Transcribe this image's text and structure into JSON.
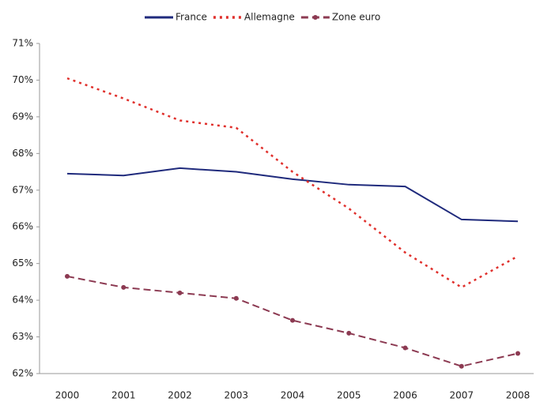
{
  "chart_data": {
    "type": "line",
    "categories": [
      "2000",
      "2001",
      "2002",
      "2003",
      "2004",
      "2005",
      "2006",
      "2007",
      "2008"
    ],
    "series": [
      {
        "name": "France",
        "color": "#1f2a7c",
        "style": "solid",
        "markers": false,
        "values": [
          67.45,
          67.4,
          67.6,
          67.5,
          67.3,
          67.15,
          67.1,
          66.2,
          66.15
        ]
      },
      {
        "name": "Allemagne",
        "color": "#e0302c",
        "style": "dotted",
        "markers": false,
        "values": [
          70.05,
          69.5,
          68.9,
          68.7,
          67.5,
          66.5,
          65.3,
          64.35,
          65.2
        ]
      },
      {
        "name": "Zone euro",
        "color": "#8c3a52",
        "style": "dashed",
        "markers": true,
        "values": [
          64.65,
          64.35,
          64.2,
          64.05,
          63.45,
          63.1,
          62.7,
          62.2,
          62.55
        ]
      }
    ],
    "ylim": [
      62,
      71
    ],
    "yticks": [
      {
        "value": 62,
        "label": "62%"
      },
      {
        "value": 63,
        "label": "63%"
      },
      {
        "value": 64,
        "label": "64%"
      },
      {
        "value": 65,
        "label": "65%"
      },
      {
        "value": 66,
        "label": "66%"
      },
      {
        "value": 67,
        "label": "67%"
      },
      {
        "value": 68,
        "label": "68%"
      },
      {
        "value": 69,
        "label": "69%"
      },
      {
        "value": 70,
        "label": "70%"
      },
      {
        "value": 71,
        "label": "71%"
      }
    ],
    "grid": false
  }
}
